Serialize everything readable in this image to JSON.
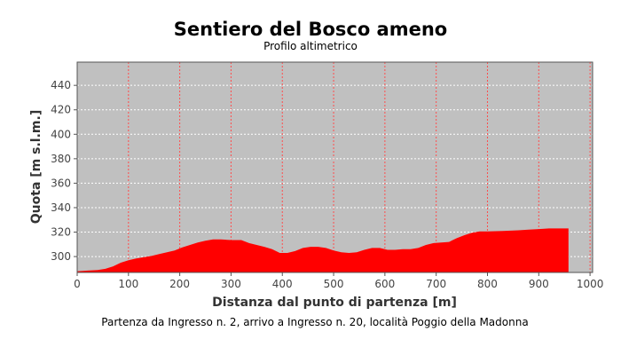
{
  "chart_data": {
    "type": "area",
    "title": "Sentiero del Bosco ameno",
    "subtitle": "Profilo altimetrico",
    "xlabel": "Distanza dal punto di partenza [m]",
    "ylabel": "Quota [m s.l.m.]",
    "caption": "Partenza da Ingresso n. 2, arrivo a Ingresso n. 20, località Poggio della Madonna",
    "xlim": [
      0,
      1005
    ],
    "ylim": [
      287,
      459
    ],
    "x_ticks": [
      0,
      100,
      200,
      300,
      400,
      500,
      600,
      700,
      800,
      900,
      1000
    ],
    "y_ticks": [
      300,
      320,
      340,
      360,
      380,
      400,
      420,
      440
    ],
    "grid": true,
    "fill_color": "#ff0000",
    "plot_background": "#c0c0c0",
    "grid_color_x": "#ff4d4d",
    "grid_color_y": "#ffffff",
    "series": [
      {
        "x": [
          0,
          20,
          40,
          55,
          70,
          85,
          100,
          115,
          130,
          145,
          160,
          175,
          190,
          205,
          220,
          235,
          250,
          265,
          280,
          300,
          320,
          335,
          350,
          365,
          380,
          395,
          410,
          425,
          440,
          455,
          470,
          485,
          500,
          515,
          530,
          545,
          560,
          575,
          590,
          605,
          620,
          635,
          650,
          665,
          680,
          695,
          710,
          725,
          740,
          755,
          770,
          785,
          800,
          830,
          860,
          880,
          900,
          920,
          940,
          958
        ],
        "y": [
          288,
          288.5,
          289,
          290,
          292,
          295,
          297,
          298.5,
          299.5,
          300.5,
          302,
          303.5,
          305,
          307.5,
          309.5,
          311.5,
          313,
          314,
          314,
          313.5,
          313.5,
          311,
          309.5,
          308,
          306,
          303,
          303,
          304.5,
          307,
          308,
          308,
          307,
          305,
          303.5,
          303,
          303.5,
          305.5,
          307,
          307,
          305.5,
          305.5,
          306,
          306,
          307,
          309.5,
          311,
          311.5,
          312,
          315,
          317.5,
          319.5,
          320.5,
          320.5,
          321,
          321.5,
          322,
          322.5,
          323,
          323,
          323
        ]
      }
    ]
  }
}
